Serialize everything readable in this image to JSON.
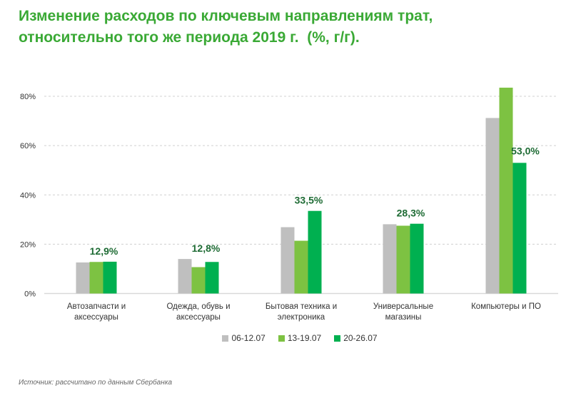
{
  "title_line1": "Изменение расходов по ключевым направлениям трат,",
  "title_line2": "относительно того же периода 2019 г.  (%, г/г).",
  "source": "Источник: рассчитано по данным Сбербанка",
  "chart_data": {
    "type": "bar",
    "title": "Изменение расходов по ключевым направлениям трат, относительно того же периода 2019 г. (%, г/г).",
    "xlabel": "",
    "ylabel": "",
    "ylim": [
      0,
      85
    ],
    "yticks": [
      0,
      20,
      40,
      60,
      80
    ],
    "ytick_labels": [
      "0%",
      "20%",
      "40%",
      "60%",
      "80%"
    ],
    "grid": true,
    "legend_position": "bottom",
    "categories": [
      [
        "Автозапчасти и",
        "аксессуары"
      ],
      [
        "Одежда, обувь и",
        "аксессуары"
      ],
      [
        "Бытовая техника и",
        "электроника"
      ],
      [
        "Универсальные",
        "магазины"
      ],
      [
        "Компьютеры и ПО"
      ]
    ],
    "series": [
      {
        "name": "06-12.07",
        "color": "#bfbfbf",
        "values": [
          12.6,
          14.0,
          26.9,
          28.1,
          71.2
        ]
      },
      {
        "name": "13-19.07",
        "color": "#7dc242",
        "values": [
          12.8,
          10.7,
          21.4,
          27.5,
          83.5
        ]
      },
      {
        "name": "20-26.07",
        "color": "#00b050",
        "values": [
          12.9,
          12.8,
          33.5,
          28.3,
          53.0
        ]
      }
    ],
    "data_labels": [
      "12,9%",
      "12,8%",
      "33,5%",
      "28,3%",
      "53,0%"
    ]
  }
}
